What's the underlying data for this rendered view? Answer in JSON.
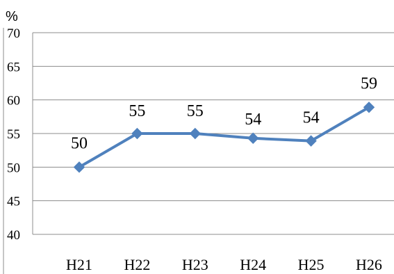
{
  "chart_data": {
    "type": "line",
    "categories": [
      "H21",
      "H22",
      "H23",
      "H24",
      "H25",
      "H26"
    ],
    "series": [
      {
        "values": [
          50,
          55,
          55,
          54.3,
          53.9,
          58.9
        ],
        "data_labels": [
          "50",
          "55",
          "55",
          "54",
          "54",
          "59"
        ],
        "color": "#4f81bd",
        "marker": "diamond"
      }
    ],
    "ylabel": "%",
    "ylim": [
      40,
      70
    ],
    "y_ticks": [
      "40",
      "45",
      "50",
      "55",
      "60",
      "65",
      "70"
    ],
    "grid": true,
    "legend": "none"
  }
}
